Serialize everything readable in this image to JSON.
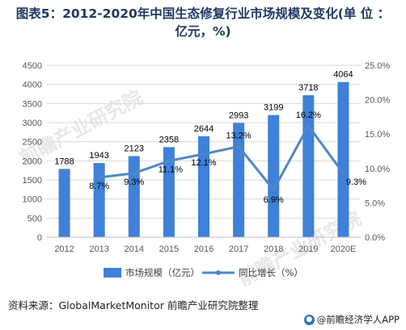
{
  "title_line1": "图表5：2012-2020年中国生态修复行业市场规模及变化(单 位 ：",
  "title_line2": "亿元，%)",
  "footer": {
    "source": "资料来源：GlobalMarketMonitor 前瞻产业研究院整理",
    "brand": "@前瞻经济学人APP",
    "brand_icon": "bulb-icon"
  },
  "watermarks": [
    "前瞻产业研究院",
    "前瞻产业研究院"
  ],
  "colors": {
    "bar": "#3f80d9",
    "line": "#4f86c6",
    "grid": "#d9d9d9"
  },
  "chart_data": {
    "type": "bar",
    "categories": [
      "2012",
      "2013",
      "2014",
      "2015",
      "2016",
      "2017",
      "2018",
      "2019",
      "2020E"
    ],
    "series": [
      {
        "name": "市场规模（亿元）",
        "type": "bar",
        "axis": "left",
        "values": [
          1788,
          1943,
          2123,
          2358,
          2644,
          2993,
          3199,
          3718,
          4064
        ],
        "labels": [
          "1788",
          "1943",
          "2123",
          "2358",
          "2644",
          "2993",
          "3199",
          "3718",
          "4064"
        ]
      },
      {
        "name": "同比增长（%）",
        "type": "line",
        "axis": "right",
        "values": [
          null,
          8.7,
          9.3,
          11.1,
          12.1,
          13.2,
          6.9,
          16.2,
          9.3
        ],
        "labels": [
          "",
          "8.7%",
          "9.3%",
          "11.1%",
          "12.1%",
          "13.2%",
          "6.9%",
          "16.2%",
          "9.3%"
        ]
      }
    ],
    "y_left": {
      "ylim": [
        0,
        4500
      ],
      "ticks": [
        "0",
        "500",
        "1000",
        "1500",
        "2000",
        "2500",
        "3000",
        "3500",
        "4000",
        "4500"
      ]
    },
    "y_right": {
      "ylim": [
        0,
        25
      ],
      "ticks": [
        "0.0%",
        "5.0%",
        "10.0%",
        "15.0%",
        "20.0%",
        "25.0%"
      ]
    },
    "grid": true,
    "legend": "bottom"
  }
}
